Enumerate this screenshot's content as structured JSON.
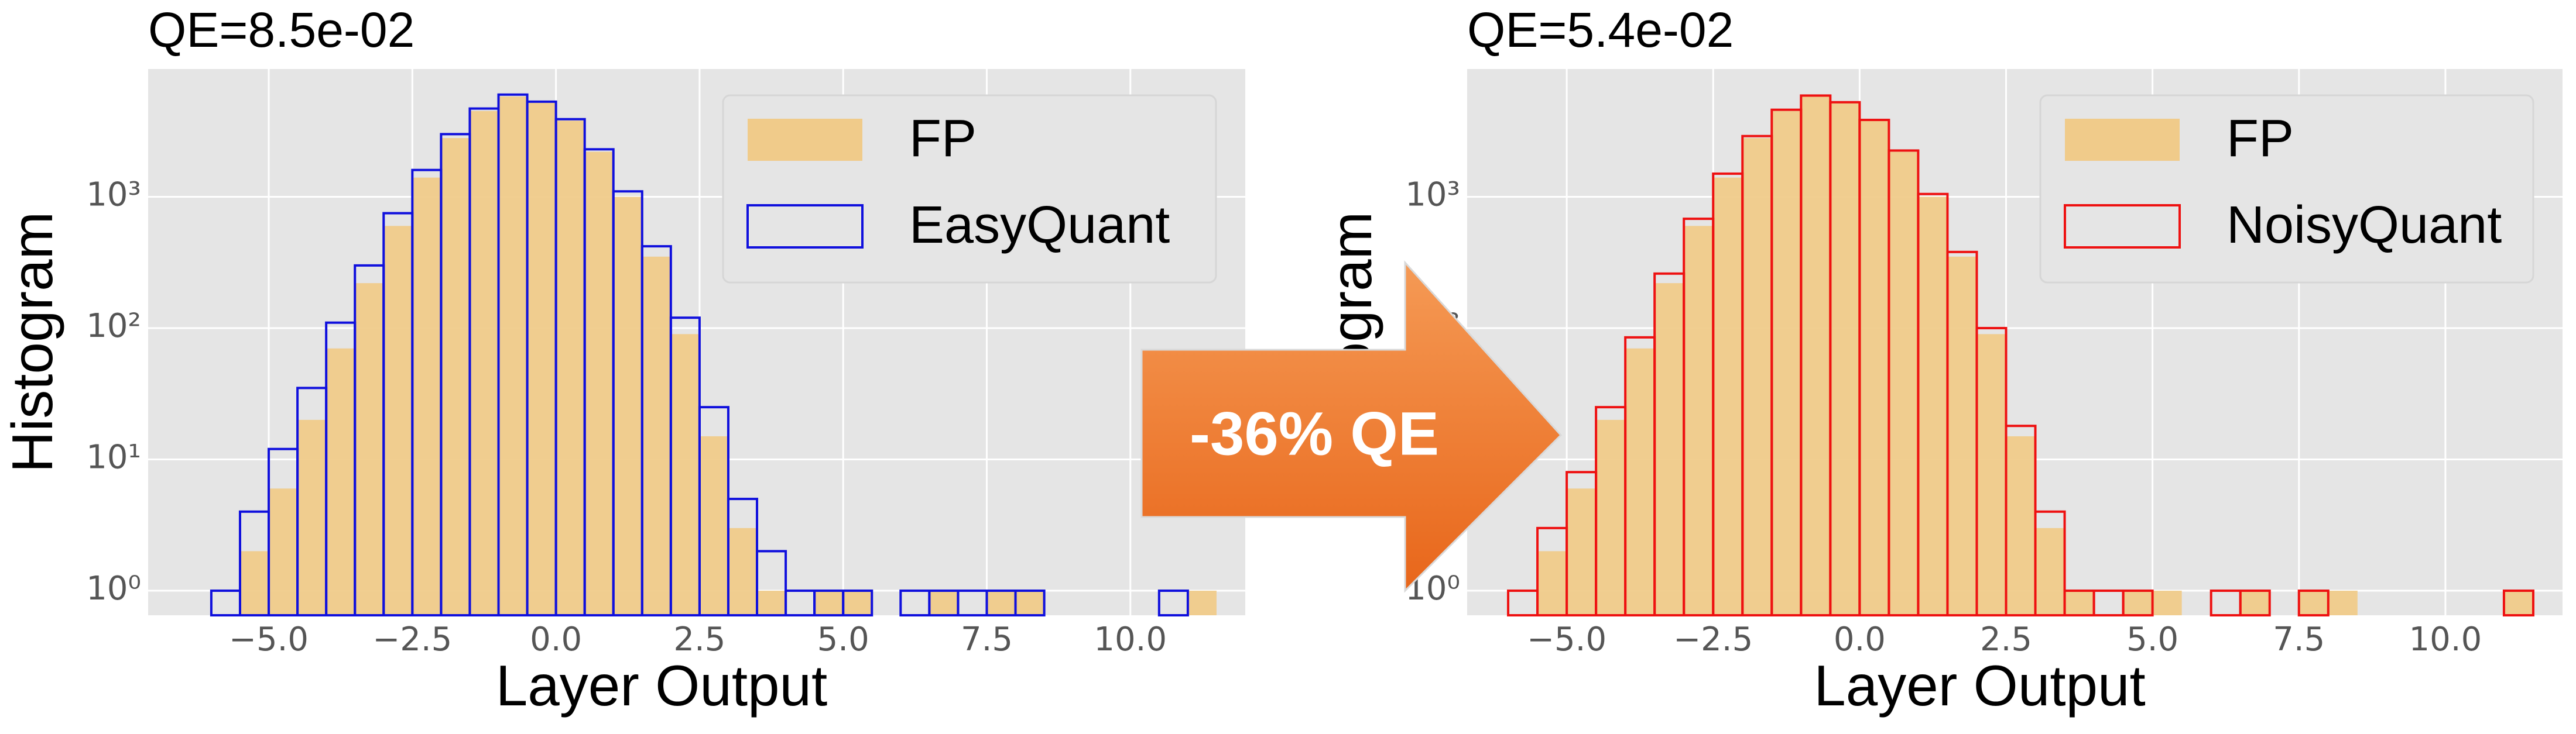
{
  "chart_data": [
    {
      "type": "histogram",
      "title": "QE=8.5e-02",
      "xlabel": "Layer Output",
      "ylabel": "Histogram",
      "log_y": true,
      "grid": true,
      "legend": "upper right",
      "bins": [
        -6,
        -5.5,
        -5,
        -4.5,
        -4,
        -3.5,
        -3,
        -2.5,
        -2,
        -1.5,
        -1,
        -0.5,
        0,
        0.5,
        1,
        1.5,
        2,
        2.5,
        3,
        3.5,
        4,
        4.5,
        5,
        5.5,
        6,
        6.5,
        7,
        7.5,
        8,
        8.5,
        9,
        9.5,
        10,
        10.5,
        11,
        11.5
      ],
      "series": [
        {
          "name": "FP",
          "color": "#f0cb8a",
          "fill": true,
          "values": [
            0,
            2,
            6,
            20,
            70,
            220,
            600,
            1400,
            2800,
            4500,
            5800,
            5200,
            3800,
            2200,
            1000,
            350,
            90,
            15,
            3,
            1,
            0,
            1,
            1,
            0,
            0,
            1,
            0,
            1,
            1,
            0,
            0,
            0,
            0,
            0,
            1
          ]
        },
        {
          "name": "EasyQuant",
          "color": "#1010dd",
          "fill": false,
          "values": [
            1,
            4,
            12,
            35,
            110,
            300,
            750,
            1600,
            3000,
            4700,
            6000,
            5300,
            3900,
            2300,
            1100,
            420,
            120,
            25,
            5,
            2,
            1,
            1,
            1,
            0,
            1,
            1,
            1,
            1,
            1,
            0,
            0,
            0,
            0,
            1,
            0
          ]
        }
      ],
      "xlim": [
        -7.1,
        12
      ],
      "ylim": [
        0.65,
        9400
      ],
      "xticks": [
        {
          "value": -5,
          "label": "−5.0"
        },
        {
          "value": -2.5,
          "label": "−2.5"
        },
        {
          "value": 0,
          "label": "0.0"
        },
        {
          "value": 2.5,
          "label": "2.5"
        },
        {
          "value": 5,
          "label": "5.0"
        },
        {
          "value": 7.5,
          "label": "7.5"
        },
        {
          "value": 10,
          "label": "10.0"
        }
      ],
      "yticks": [
        {
          "value": 1,
          "label": "10⁰"
        },
        {
          "value": 10,
          "label": "10¹"
        },
        {
          "value": 100,
          "label": "10²"
        },
        {
          "value": 1000,
          "label": "10³"
        }
      ]
    },
    {
      "type": "histogram",
      "title": "QE=5.4e-02",
      "xlabel": "Layer Output",
      "ylabel": "Histogram",
      "log_y": true,
      "grid": true,
      "legend": "upper right",
      "bins": [
        -6,
        -5.5,
        -5,
        -4.5,
        -4,
        -3.5,
        -3,
        -2.5,
        -2,
        -1.5,
        -1,
        -0.5,
        0,
        0.5,
        1,
        1.5,
        2,
        2.5,
        3,
        3.5,
        4,
        4.5,
        5,
        5.5,
        6,
        6.5,
        7,
        7.5,
        8,
        8.5,
        9,
        9.5,
        10,
        10.5,
        11,
        11.5
      ],
      "series": [
        {
          "name": "FP",
          "color": "#f0cb8a",
          "fill": true,
          "values": [
            0,
            2,
            6,
            20,
            70,
            220,
            600,
            1400,
            2800,
            4500,
            5800,
            5200,
            3800,
            2200,
            1000,
            350,
            90,
            15,
            3,
            1,
            0,
            1,
            1,
            0,
            0,
            1,
            0,
            1,
            1,
            0,
            0,
            0,
            0,
            0,
            1
          ]
        },
        {
          "name": "NoisyQuant",
          "color": "#ee1111",
          "fill": false,
          "values": [
            1,
            3,
            8,
            25,
            85,
            260,
            680,
            1500,
            2900,
            4600,
            5900,
            5250,
            3850,
            2250,
            1050,
            380,
            100,
            18,
            4,
            1,
            1,
            1,
            0,
            0,
            1,
            1,
            0,
            1,
            0,
            0,
            0,
            0,
            0,
            0,
            1
          ]
        }
      ],
      "xlim": [
        -6.7,
        12
      ],
      "ylim": [
        0.65,
        9400
      ],
      "xticks": [
        {
          "value": -5,
          "label": "−5.0"
        },
        {
          "value": -2.5,
          "label": "−2.5"
        },
        {
          "value": 0,
          "label": "0.0"
        },
        {
          "value": 2.5,
          "label": "2.5"
        },
        {
          "value": 5,
          "label": "5.0"
        },
        {
          "value": 7.5,
          "label": "7.5"
        },
        {
          "value": 10,
          "label": "10.0"
        }
      ],
      "yticks": [
        {
          "value": 1,
          "label": "10⁰"
        },
        {
          "value": 10,
          "label": "10¹"
        },
        {
          "value": 100,
          "label": "10²"
        },
        {
          "value": 1000,
          "label": "10³"
        }
      ]
    }
  ],
  "annotation": "-36% QE"
}
